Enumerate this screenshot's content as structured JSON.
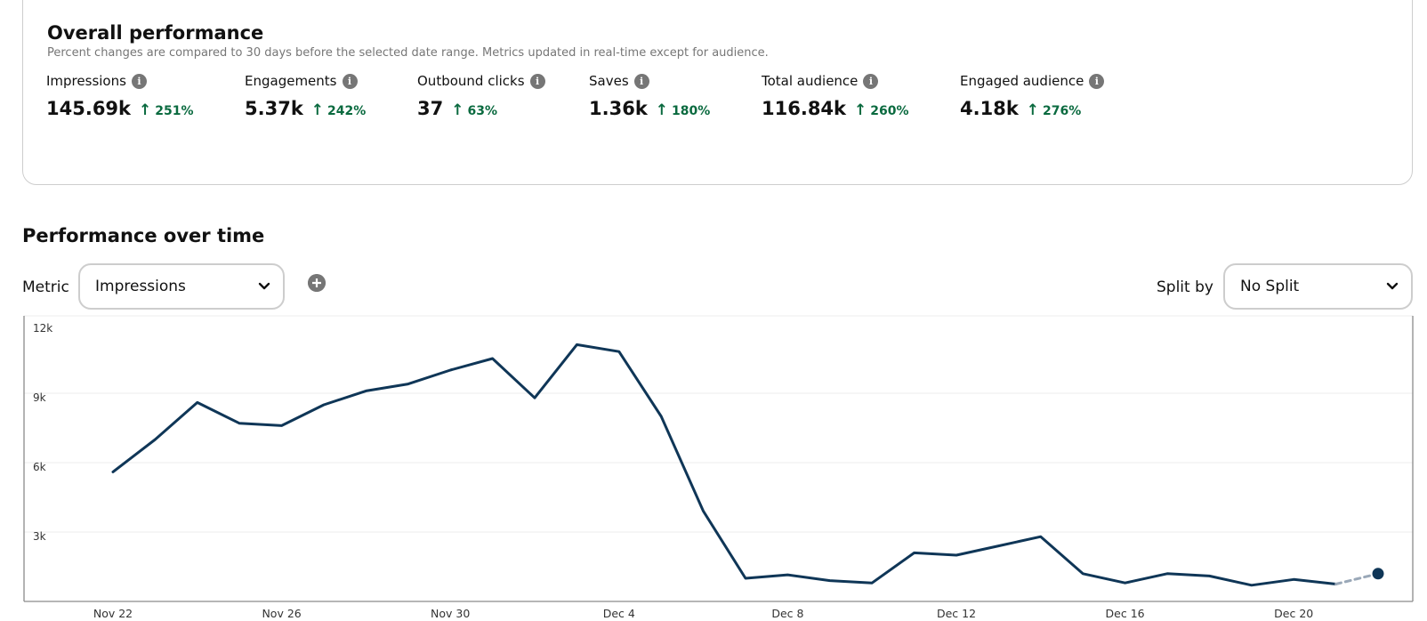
{
  "overall": {
    "title": "Overall performance",
    "subtitle": "Percent changes are compared to 30 days before the selected date range. Metrics updated in real-time except for audience.",
    "metrics": [
      {
        "label": "Impressions",
        "value": "145.69k",
        "change": "251%"
      },
      {
        "label": "Engagements",
        "value": "5.37k",
        "change": "242%"
      },
      {
        "label": "Outbound clicks",
        "value": "37",
        "change": "63%"
      },
      {
        "label": "Saves",
        "value": "1.36k",
        "change": "180%"
      },
      {
        "label": "Total audience",
        "value": "116.84k",
        "change": "260%"
      },
      {
        "label": "Engaged audience",
        "value": "4.18k",
        "change": "276%"
      }
    ],
    "up_icon": "arrow-up-icon",
    "info_icon": "info-icon",
    "positive_color": "#0a6a3f"
  },
  "performance": {
    "title": "Performance over time",
    "metric_label": "Metric",
    "metric_selected": "Impressions",
    "split_label": "Split by",
    "split_selected": "No Split",
    "add_icon": "plus-circle-icon",
    "chevron_icon": "chevron-down-icon"
  },
  "chart_data": {
    "type": "line",
    "title": "",
    "xlabel": "",
    "ylabel": "",
    "ylim": [
      0,
      12000
    ],
    "yticks": [
      "3k",
      "6k",
      "9k",
      "12k"
    ],
    "ytick_values": [
      3000,
      6000,
      9000,
      12000
    ],
    "xticks": [
      "Nov 22",
      "Nov 26",
      "Nov 30",
      "Dec 4",
      "Dec 8",
      "Dec 12",
      "Dec 16",
      "Dec 20"
    ],
    "x": [
      "Nov 22",
      "Nov 23",
      "Nov 24",
      "Nov 25",
      "Nov 26",
      "Nov 27",
      "Nov 28",
      "Nov 29",
      "Nov 30",
      "Dec 1",
      "Dec 2",
      "Dec 3",
      "Dec 4",
      "Dec 5",
      "Dec 6",
      "Dec 7",
      "Dec 8",
      "Dec 9",
      "Dec 10",
      "Dec 11",
      "Dec 12",
      "Dec 13",
      "Dec 14",
      "Dec 15",
      "Dec 16",
      "Dec 17",
      "Dec 18",
      "Dec 19",
      "Dec 20",
      "Dec 21",
      "Dec 22"
    ],
    "series": [
      {
        "values": [
          5600,
          7000,
          8600,
          7700,
          7600,
          8500,
          9100,
          9400,
          10000,
          10500,
          8800,
          11100,
          10800,
          8000,
          3900,
          1000,
          1150,
          900,
          800,
          2100,
          2000,
          2400,
          2800,
          1200,
          800,
          1200,
          1100,
          700,
          950,
          750,
          1200
        ]
      }
    ],
    "partial_last_point": true,
    "line_color": "#0f3657",
    "grid": true
  }
}
